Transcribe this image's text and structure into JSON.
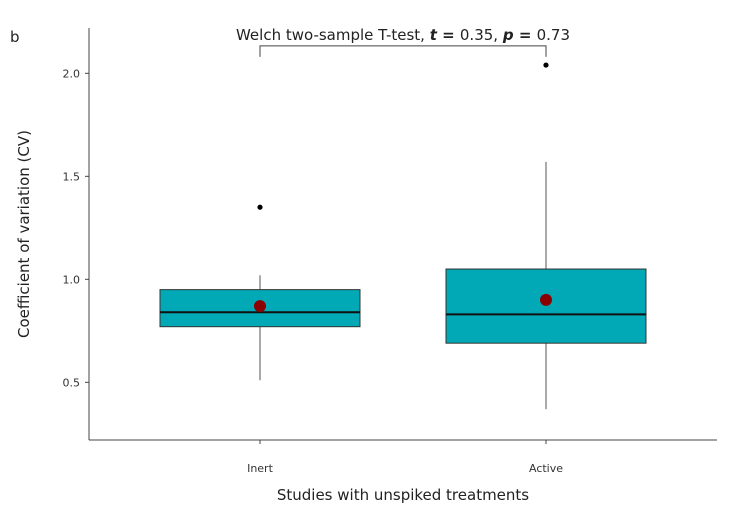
{
  "panel_letter": "b",
  "chart_data": {
    "type": "box",
    "categories": [
      "Inert",
      "Active"
    ],
    "xlabel": "Studies with unspiked treatments",
    "ylabel": "Coefficient of variation (CV)",
    "ylim": [
      0.22,
      2.22
    ],
    "yticks": [
      0.5,
      1.0,
      1.5,
      2.0
    ],
    "ytick_labels": [
      "0.5",
      "1.0",
      "1.5",
      "2.0"
    ],
    "grid": false,
    "boxes": [
      {
        "category": "Inert",
        "whisker_low": 0.51,
        "q1": 0.77,
        "median": 0.84,
        "q3": 0.95,
        "whisker_high": 1.02,
        "mean": 0.87,
        "outliers": [
          1.35
        ]
      },
      {
        "category": "Active",
        "whisker_low": 0.37,
        "q1": 0.69,
        "median": 0.83,
        "q3": 1.05,
        "whisker_high": 1.57,
        "mean": 0.9,
        "outliers": [
          2.04
        ]
      }
    ],
    "annotation": {
      "label": "Welch two-sample T-test, ",
      "t_symbol": "t",
      "equals": " = ",
      "t_value": "0.35",
      "separator": ", ",
      "p_symbol": "p",
      "p_value": "0.73",
      "bracket_y": 2.08
    },
    "colors": {
      "box": "#00A9B5",
      "mean": "#8B0000",
      "outlier": "#000000"
    }
  }
}
